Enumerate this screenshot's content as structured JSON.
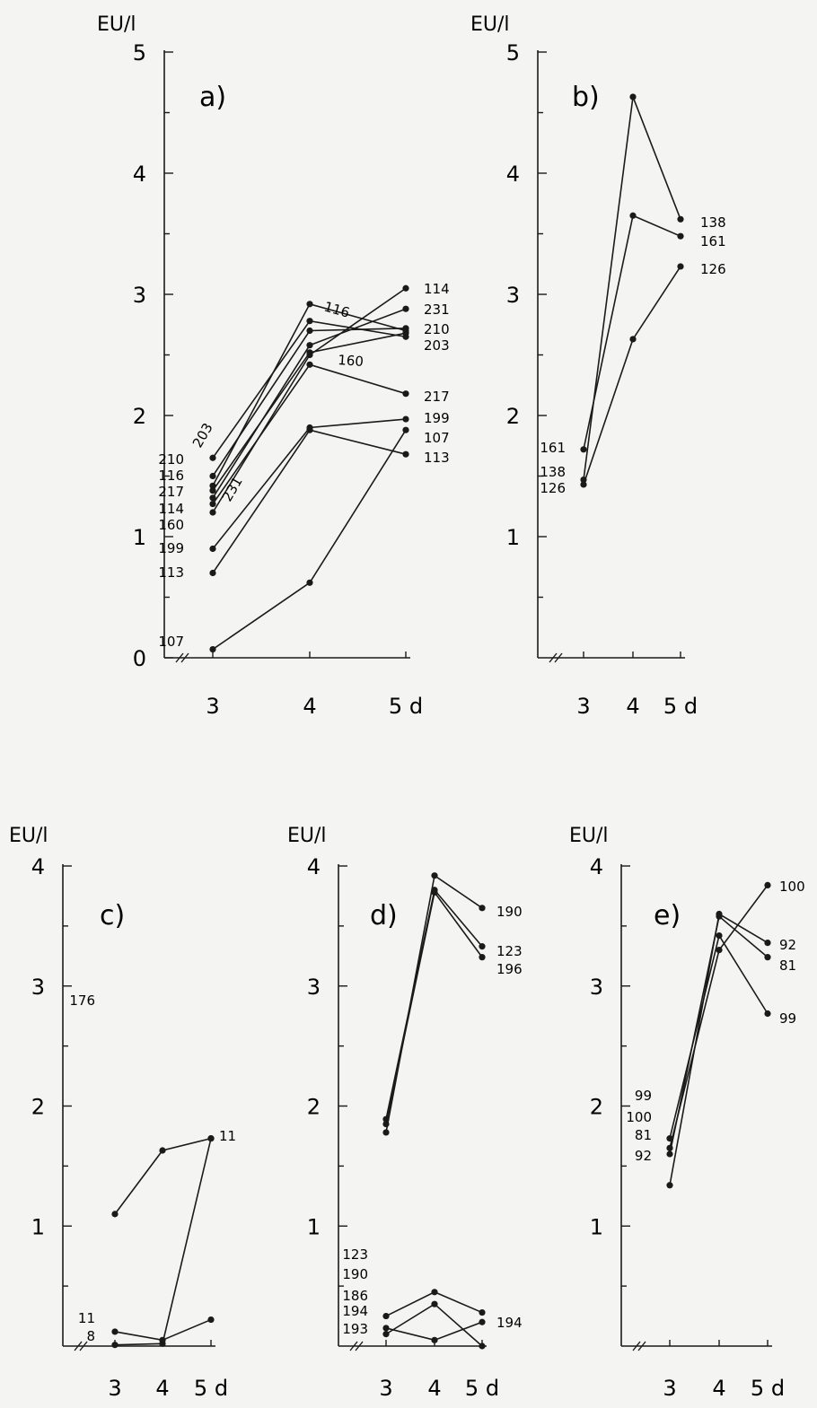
{
  "chart_data": [
    {
      "type": "line",
      "title": "a)",
      "ylabel": "EU/l",
      "xlabel": "",
      "x": [
        "3",
        "4",
        "5 d"
      ],
      "ylim": [
        0,
        5
      ],
      "yticks": [
        "0",
        "1",
        "2",
        "3",
        "4",
        "5"
      ],
      "series": [
        {
          "name": "114",
          "values": [
            1.2,
            2.5,
            3.05
          ]
        },
        {
          "name": "231",
          "values": [
            1.32,
            2.58,
            2.88
          ]
        },
        {
          "name": "210",
          "values": [
            1.5,
            2.7,
            2.72
          ]
        },
        {
          "name": "203",
          "values": [
            1.65,
            2.78,
            2.65
          ]
        },
        {
          "name": "217",
          "values": [
            1.27,
            2.42,
            2.18
          ]
        },
        {
          "name": "199",
          "values": [
            0.9,
            1.9,
            1.97
          ]
        },
        {
          "name": "107",
          "values": [
            0.07,
            0.62,
            1.88
          ]
        },
        {
          "name": "113",
          "values": [
            0.7,
            1.88,
            1.68
          ]
        },
        {
          "name": "116",
          "values": [
            1.42,
            2.92,
            2.7
          ]
        },
        {
          "name": "160",
          "values": [
            1.38,
            2.52,
            2.68
          ]
        }
      ],
      "labels_left": [
        "203",
        "210",
        "116",
        "231",
        "217",
        "114",
        "160",
        "199",
        "113",
        "107"
      ],
      "labels_right": [
        "114",
        "231",
        "210",
        "203",
        "217",
        "199",
        "107",
        "113"
      ],
      "labels_mid": [
        "116",
        "160"
      ]
    },
    {
      "type": "line",
      "title": "b)",
      "ylabel": "EU/l",
      "xlabel": "",
      "x": [
        "3",
        "4",
        "5 d"
      ],
      "ylim": [
        0,
        5
      ],
      "yticks": [
        "1",
        "2",
        "3",
        "4",
        "5"
      ],
      "series": [
        {
          "name": "138",
          "values": [
            1.47,
            4.63,
            3.62
          ]
        },
        {
          "name": "161",
          "values": [
            1.72,
            3.65,
            3.48
          ]
        },
        {
          "name": "126",
          "values": [
            1.43,
            2.63,
            3.23
          ]
        }
      ],
      "labels_left": [
        "161",
        "138",
        "126"
      ],
      "labels_right": [
        "138",
        "161",
        "126"
      ]
    },
    {
      "type": "line",
      "title": "c)",
      "ylabel": "EU/l",
      "xlabel": "",
      "x": [
        "3",
        "4",
        "5 d"
      ],
      "ylim": [
        0,
        4
      ],
      "yticks": [
        "1",
        "2",
        "3",
        "4"
      ],
      "series": [
        {
          "name": "176",
          "values": [
            1.1,
            1.63,
            1.73
          ]
        },
        {
          "name": "11",
          "values": [
            0.12,
            0.05,
            0.22
          ]
        },
        {
          "name": "8",
          "values": [
            0.01,
            0.02,
            1.73
          ]
        }
      ],
      "labels_left": [
        "176",
        "11",
        "8"
      ],
      "labels_right": [
        "11"
      ]
    },
    {
      "type": "line",
      "title": "d)",
      "ylabel": "EU/l",
      "xlabel": "",
      "x": [
        "3",
        "4",
        "5 d"
      ],
      "ylim": [
        0,
        4
      ],
      "yticks": [
        "1",
        "2",
        "3",
        "4"
      ],
      "series": [
        {
          "name": "190",
          "values": [
            1.78,
            3.92,
            3.65
          ]
        },
        {
          "name": "123",
          "values": [
            1.89,
            3.8,
            3.33
          ]
        },
        {
          "name": "196",
          "values": [
            1.85,
            3.78,
            3.24
          ]
        },
        {
          "name": "186",
          "values": [
            0.25,
            0.45,
            0.28
          ]
        },
        {
          "name": "194",
          "values": [
            0.15,
            0.05,
            0.2
          ]
        },
        {
          "name": "193",
          "values": [
            0.1,
            0.35,
            0.0
          ]
        }
      ],
      "labels_left": [
        "123",
        "190",
        "186",
        "194",
        "193"
      ],
      "labels_right": [
        "190",
        "123",
        "196",
        "194"
      ]
    },
    {
      "type": "line",
      "title": "e)",
      "ylabel": "EU/l",
      "xlabel": "",
      "x": [
        "3",
        "4",
        "5 d"
      ],
      "ylim": [
        0,
        4
      ],
      "yticks": [
        "1",
        "2",
        "3",
        "4"
      ],
      "series": [
        {
          "name": "100",
          "values": [
            1.65,
            3.3,
            3.84
          ]
        },
        {
          "name": "92",
          "values": [
            1.34,
            3.6,
            3.36
          ]
        },
        {
          "name": "81",
          "values": [
            1.6,
            3.58,
            3.24
          ]
        },
        {
          "name": "99",
          "values": [
            1.73,
            3.42,
            2.77
          ]
        }
      ],
      "labels_left": [
        "99",
        "100",
        "81",
        "92"
      ],
      "labels_right": [
        "100",
        "92",
        "81",
        "99"
      ]
    }
  ]
}
